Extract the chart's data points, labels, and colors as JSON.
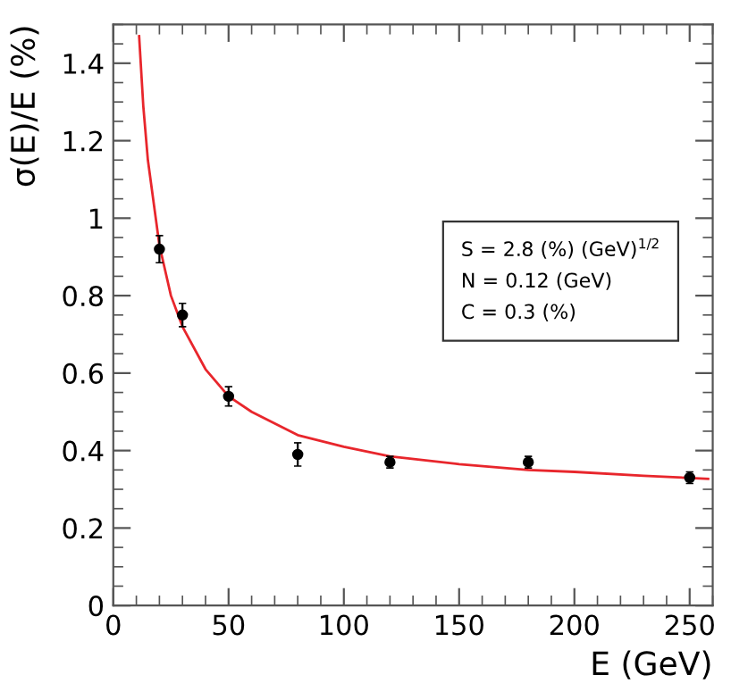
{
  "chart_data": {
    "type": "scatter",
    "xlabel": "E (GeV)",
    "ylabel": "σ(E)/E (%)",
    "xlim": [
      0,
      260
    ],
    "ylim": [
      0,
      1.5
    ],
    "xticks": [
      0,
      50,
      100,
      150,
      200,
      250
    ],
    "yticks": [
      0,
      0.2,
      0.4,
      0.6,
      0.8,
      1,
      1.2,
      1.4
    ],
    "grid": false,
    "marker": "circle",
    "annotations": [
      "S = 2.8 (%) (GeV)$^{1/2}$",
      "N = 0.12 (GeV)",
      "C = 0.3 (%)"
    ],
    "series": [
      {
        "color": "#000000",
        "x": [
          20,
          30,
          50,
          80,
          120,
          180,
          250
        ],
        "values": [
          0.92,
          0.75,
          0.54,
          0.39,
          0.37,
          0.37,
          0.33
        ],
        "errors": [
          0.035,
          0.03,
          0.025,
          0.03,
          0.015,
          0.015,
          0.015
        ]
      },
      {
        "type": "line",
        "color": "#e8262c",
        "marker": "none",
        "x": [
          11.2,
          13,
          15,
          20,
          25,
          30,
          40,
          50,
          60,
          80,
          100,
          120,
          150,
          180,
          200,
          230,
          258
        ],
        "values": [
          1.47,
          1.29,
          1.15,
          0.93,
          0.8,
          0.72,
          0.61,
          0.54,
          0.5,
          0.44,
          0.41,
          0.385,
          0.365,
          0.35,
          0.345,
          0.335,
          0.327
        ]
      }
    ]
  }
}
